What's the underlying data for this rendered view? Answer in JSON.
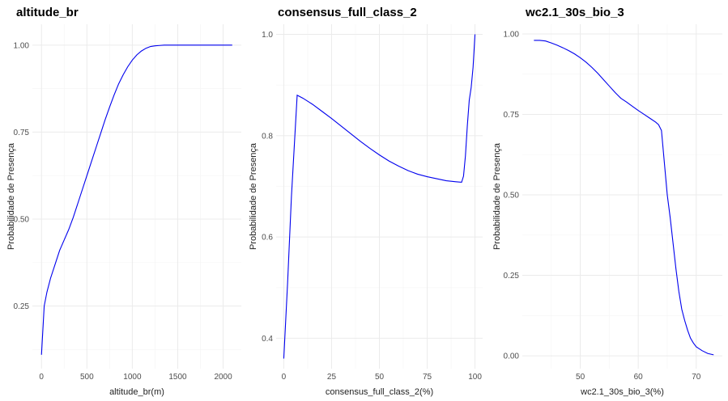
{
  "chart_data": [
    {
      "type": "line",
      "title": "altitude_br",
      "xlabel": "altitude_br(m)",
      "ylabel": "Probabilidade de Presença",
      "xlim": [
        -100,
        2200
      ],
      "ylim": [
        0.07,
        1.06
      ],
      "x_ticks": [
        0,
        500,
        1000,
        1500,
        2000
      ],
      "y_ticks": [
        0.25,
        0.5,
        0.75,
        1.0
      ],
      "y_tick_labels": [
        "0.25",
        "0.50",
        "0.75",
        "1.00"
      ],
      "grid": true,
      "series": [
        {
          "color": "#0000ee",
          "x": [
            0,
            30,
            60,
            100,
            150,
            200,
            250,
            300,
            350,
            400,
            450,
            500,
            550,
            600,
            650,
            700,
            750,
            800,
            850,
            900,
            950,
            1000,
            1050,
            1100,
            1150,
            1200,
            1250,
            1300,
            1350,
            1400,
            1500,
            1600,
            1700,
            1800,
            1900,
            2000,
            2100
          ],
          "y": [
            0.11,
            0.25,
            0.29,
            0.33,
            0.37,
            0.41,
            0.44,
            0.47,
            0.505,
            0.545,
            0.585,
            0.625,
            0.665,
            0.705,
            0.745,
            0.785,
            0.822,
            0.857,
            0.889,
            0.915,
            0.938,
            0.957,
            0.972,
            0.983,
            0.991,
            0.996,
            0.998,
            0.999,
            1.0,
            1.0,
            1.0,
            1.0,
            1.0,
            1.0,
            1.0,
            1.0,
            1.0
          ]
        }
      ]
    },
    {
      "type": "line",
      "title": "consensus_full_class_2",
      "xlabel": "consensus_full_class_2(%)",
      "ylabel": "Probabilidade de Presença",
      "xlim": [
        -4,
        104
      ],
      "ylim": [
        0.34,
        1.02
      ],
      "x_ticks": [
        0,
        25,
        50,
        75,
        100
      ],
      "y_ticks": [
        0.4,
        0.6,
        0.8,
        1.0
      ],
      "y_tick_labels": [
        "0.4",
        "0.6",
        "0.8",
        "1.0"
      ],
      "grid": true,
      "series": [
        {
          "color": "#0000ee",
          "x": [
            0,
            2,
            4,
            7,
            10,
            15,
            20,
            25,
            30,
            35,
            40,
            45,
            50,
            55,
            60,
            65,
            70,
            75,
            80,
            85,
            90,
            93,
            94,
            95,
            96,
            97,
            98,
            99,
            100
          ],
          "y": [
            0.36,
            0.51,
            0.68,
            0.88,
            0.874,
            0.862,
            0.848,
            0.834,
            0.819,
            0.804,
            0.789,
            0.775,
            0.762,
            0.75,
            0.74,
            0.731,
            0.724,
            0.719,
            0.715,
            0.711,
            0.709,
            0.708,
            0.72,
            0.76,
            0.82,
            0.87,
            0.895,
            0.935,
            1.0
          ]
        }
      ]
    },
    {
      "type": "line",
      "title": "wc2.1_30s_bio_3",
      "xlabel": "wc2.1_30s_bio_3(%)",
      "ylabel": "Probabilidade de Presença",
      "xlim": [
        40,
        74.5
      ],
      "ylim": [
        -0.04,
        1.03
      ],
      "x_ticks": [
        50,
        60,
        70
      ],
      "y_ticks": [
        0.0,
        0.25,
        0.5,
        0.75,
        1.0
      ],
      "y_tick_labels": [
        "0.00",
        "0.25",
        "0.50",
        "0.75",
        "1.00"
      ],
      "grid": true,
      "series": [
        {
          "color": "#0000ee",
          "x": [
            42,
            43,
            44,
            45,
            46,
            47,
            48,
            49,
            50,
            51,
            52,
            53,
            54,
            55,
            56,
            57,
            58,
            59,
            60,
            61,
            62,
            63,
            63.5,
            64,
            64.5,
            65,
            65.5,
            66,
            66.5,
            67,
            67.5,
            68,
            68.5,
            69,
            69.5,
            70,
            71,
            72,
            73
          ],
          "y": [
            0.98,
            0.98,
            0.978,
            0.972,
            0.965,
            0.957,
            0.948,
            0.938,
            0.926,
            0.912,
            0.896,
            0.878,
            0.858,
            0.838,
            0.818,
            0.8,
            0.788,
            0.775,
            0.762,
            0.75,
            0.738,
            0.726,
            0.718,
            0.7,
            0.6,
            0.5,
            0.43,
            0.35,
            0.27,
            0.2,
            0.145,
            0.11,
            0.08,
            0.055,
            0.04,
            0.028,
            0.016,
            0.007,
            0.003
          ]
        }
      ]
    }
  ]
}
